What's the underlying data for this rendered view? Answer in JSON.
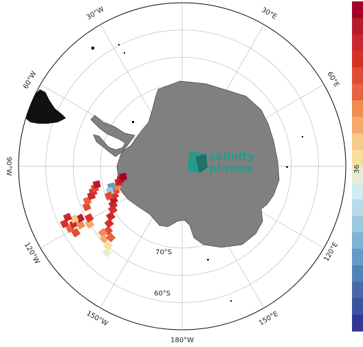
{
  "map": {
    "projection": "south-polar-stereographic",
    "land_color": "#808080",
    "grid_color": "#bbbbbb",
    "longitude_labels": [
      {
        "text": "30°W",
        "lon": -30
      },
      {
        "text": "30°E",
        "lon": 30
      },
      {
        "text": "60°E",
        "lon": 60
      },
      {
        "text": "60°W",
        "lon": -60
      },
      {
        "text": "90°W",
        "lon": -90
      },
      {
        "text": "120°W",
        "lon": -120
      },
      {
        "text": "120°E",
        "lon": 120
      },
      {
        "text": "150°W",
        "lon": -150
      },
      {
        "text": "150°E",
        "lon": 150
      },
      {
        "text": "180°W",
        "lon": 180
      }
    ],
    "latitude_labels": [
      {
        "text": "70°S",
        "lat": -70
      },
      {
        "text": "60°S",
        "lat": -60
      }
    ],
    "parallels": [
      -40,
      -50,
      -60,
      -70,
      -80
    ],
    "meridians": [
      0,
      30,
      60,
      90,
      120,
      150,
      180,
      -30,
      -60,
      -90,
      -120,
      -150
    ]
  },
  "logo": {
    "line1": "salinity",
    "line2": "pi-mep",
    "color": "#1a9e8f"
  },
  "colorbar": {
    "visible_tick": "36",
    "colors": [
      "#a50026",
      "#b81b2c",
      "#c7292e",
      "#d73027",
      "#e04b34",
      "#e8633e",
      "#f08b52",
      "#f6a96b",
      "#f9c986",
      "#f7e09b",
      "#e9ecd4",
      "#d2eaf0",
      "#b7dbe9",
      "#9ac8df",
      "#7fb3d5",
      "#6699c5",
      "#5183b9",
      "#4569ab",
      "#3a549f",
      "#313695"
    ]
  },
  "track_cells": [
    {
      "lon": -64,
      "lat": -42,
      "v": 0.85
    },
    {
      "lon": -61,
      "lat": -43,
      "v": 0.75
    },
    {
      "lon": -58,
      "lat": -44,
      "v": 0.8
    },
    {
      "lon": -62,
      "lat": -45,
      "v": 0.9
    },
    {
      "lon": -60,
      "lat": -47,
      "v": 0.7
    },
    {
      "lon": -63,
      "lat": -48,
      "v": 0.95
    },
    {
      "lon": -58,
      "lat": -50,
      "v": 0.65
    },
    {
      "lon": -61,
      "lat": -51,
      "v": 0.85
    },
    {
      "lon": -64,
      "lat": -46,
      "v": 0.6
    },
    {
      "lon": -66,
      "lat": -44,
      "v": 0.9
    },
    {
      "lon": -67,
      "lat": -52,
      "v": 0.8
    },
    {
      "lon": -70,
      "lat": -53,
      "v": 0.75
    },
    {
      "lon": -72,
      "lat": -55,
      "v": 0.9
    },
    {
      "lon": -74,
      "lat": -56,
      "v": 0.85
    },
    {
      "lon": -76,
      "lat": -57,
      "v": 0.8
    },
    {
      "lon": -78,
      "lat": -58,
      "v": 0.95
    },
    {
      "lon": -49,
      "lat": -54,
      "v": 0.8
    },
    {
      "lon": -50,
      "lat": -52,
      "v": 0.7
    },
    {
      "lon": -47,
      "lat": -51,
      "v": 0.65
    },
    {
      "lon": -45,
      "lat": -53,
      "v": 0.75
    },
    {
      "lon": -43,
      "lat": -50,
      "v": 0.55
    },
    {
      "lon": -41,
      "lat": -48,
      "v": 0.45
    },
    {
      "lon": -52,
      "lat": -56,
      "v": 0.85
    },
    {
      "lon": -55,
      "lat": -58,
      "v": 0.9
    },
    {
      "lon": -58,
      "lat": -60,
      "v": 0.85
    },
    {
      "lon": -61,
      "lat": -61,
      "v": 0.9
    },
    {
      "lon": -64,
      "lat": -62,
      "v": 0.95
    },
    {
      "lon": -67,
      "lat": -63,
      "v": 0.85
    },
    {
      "lon": -70,
      "lat": -64,
      "v": 0.8
    },
    {
      "lon": -73,
      "lat": -65,
      "v": 0.7
    },
    {
      "lon": -76,
      "lat": -66,
      "v": 0.9
    },
    {
      "lon": -78,
      "lat": -67,
      "v": 0.95
    },
    {
      "lon": -74,
      "lat": -63,
      "v": 0.2
    },
    {
      "lon": -71,
      "lat": -62,
      "v": 0.3
    },
    {
      "lon": -68,
      "lat": -61,
      "v": 0.8
    },
    {
      "lon": -80,
      "lat": -68,
      "v": 0.98
    }
  ]
}
